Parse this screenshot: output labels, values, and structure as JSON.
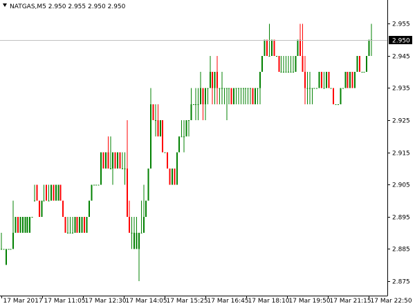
{
  "window": {
    "title": "NATGAS,M5  2.950 2.955 2.950 2.950"
  },
  "colors": {
    "bull": "#008000",
    "bear": "#ff0000",
    "axis": "#000000",
    "bid_line": "#c0c0c0",
    "price_box_bg": "#000000",
    "price_box_text": "#ffffff"
  },
  "chart_data": {
    "type": "candlestick",
    "symbol": "NATGAS",
    "timeframe": "M5",
    "current_price": 2.95,
    "ylim": [
      2.8705,
      2.9585
    ],
    "y_ticks": [
      "2.955",
      "2.945",
      "2.935",
      "2.925",
      "2.915",
      "2.905",
      "2.895",
      "2.885",
      "2.875"
    ],
    "x_tick_labels": [
      "17 Mar 2017",
      "17 Mar 11:05",
      "17 Mar 12:30",
      "17 Mar 14:05",
      "17 Mar 15:25",
      "17 Mar 16:45",
      "17 Mar 18:10",
      "17 Mar 19:50",
      "17 Mar 21:15",
      "17 Mar 22:50"
    ],
    "ohlc": [
      [
        2.885,
        2.89,
        2.885,
        2.885
      ],
      [
        2.885,
        2.885,
        2.885,
        2.885
      ],
      [
        2.88,
        2.885,
        2.88,
        2.885
      ],
      [
        2.885,
        2.885,
        2.885,
        2.885
      ],
      [
        2.885,
        2.885,
        2.885,
        2.885
      ],
      [
        2.885,
        2.9,
        2.885,
        2.89
      ],
      [
        2.89,
        2.895,
        2.89,
        2.895
      ],
      [
        2.895,
        2.895,
        2.89,
        2.89
      ],
      [
        2.89,
        2.895,
        2.89,
        2.895
      ],
      [
        2.89,
        2.895,
        2.89,
        2.895
      ],
      [
        2.89,
        2.895,
        2.89,
        2.895
      ],
      [
        2.89,
        2.895,
        2.89,
        2.895
      ],
      [
        2.89,
        2.895,
        2.89,
        2.895
      ],
      [
        2.895,
        2.895,
        2.895,
        2.895
      ],
      [
        2.9,
        2.905,
        2.9,
        2.9
      ],
      [
        2.905,
        2.905,
        2.9,
        2.9
      ],
      [
        2.9,
        2.9,
        2.895,
        2.895
      ],
      [
        2.895,
        2.9,
        2.895,
        2.9
      ],
      [
        2.9,
        2.905,
        2.9,
        2.9
      ],
      [
        2.905,
        2.905,
        2.9,
        2.9
      ],
      [
        2.9,
        2.905,
        2.9,
        2.9
      ],
      [
        2.9,
        2.905,
        2.9,
        2.905
      ],
      [
        2.905,
        2.905,
        2.9,
        2.9
      ],
      [
        2.9,
        2.905,
        2.9,
        2.905
      ],
      [
        2.9,
        2.905,
        2.9,
        2.905
      ],
      [
        2.905,
        2.905,
        2.9,
        2.9
      ],
      [
        2.9,
        2.9,
        2.895,
        2.895
      ],
      [
        2.895,
        2.895,
        2.89,
        2.89
      ],
      [
        2.89,
        2.895,
        2.89,
        2.89
      ],
      [
        2.89,
        2.895,
        2.89,
        2.89
      ],
      [
        2.89,
        2.895,
        2.89,
        2.89
      ],
      [
        2.89,
        2.895,
        2.89,
        2.895
      ],
      [
        2.895,
        2.895,
        2.89,
        2.89
      ],
      [
        2.89,
        2.895,
        2.89,
        2.895
      ],
      [
        2.89,
        2.895,
        2.89,
        2.895
      ],
      [
        2.895,
        2.895,
        2.89,
        2.89
      ],
      [
        2.89,
        2.895,
        2.89,
        2.895
      ],
      [
        2.895,
        2.9,
        2.895,
        2.9
      ],
      [
        2.9,
        2.905,
        2.9,
        2.905
      ],
      [
        2.905,
        2.905,
        2.905,
        2.905
      ],
      [
        2.905,
        2.905,
        2.905,
        2.905
      ],
      [
        2.905,
        2.905,
        2.905,
        2.905
      ],
      [
        2.905,
        2.915,
        2.905,
        2.915
      ],
      [
        2.915,
        2.915,
        2.91,
        2.91
      ],
      [
        2.91,
        2.915,
        2.91,
        2.915
      ],
      [
        2.915,
        2.92,
        2.91,
        2.91
      ],
      [
        2.91,
        2.92,
        2.91,
        2.91
      ],
      [
        2.91,
        2.915,
        2.905,
        2.915
      ],
      [
        2.915,
        2.915,
        2.91,
        2.91
      ],
      [
        2.91,
        2.915,
        2.91,
        2.915
      ],
      [
        2.915,
        2.915,
        2.91,
        2.91
      ],
      [
        2.91,
        2.915,
        2.91,
        2.91
      ],
      [
        2.91,
        2.915,
        2.905,
        2.91
      ],
      [
        2.91,
        2.925,
        2.895,
        2.895
      ],
      [
        2.895,
        2.9,
        2.89,
        2.89
      ],
      [
        2.89,
        2.895,
        2.885,
        2.89
      ],
      [
        2.885,
        2.895,
        2.885,
        2.89
      ],
      [
        2.885,
        2.895,
        2.885,
        2.89
      ],
      [
        2.885,
        2.89,
        2.875,
        2.89
      ],
      [
        2.89,
        2.9,
        2.89,
        2.89
      ],
      [
        2.89,
        2.905,
        2.89,
        2.895
      ],
      [
        2.895,
        2.9,
        2.895,
        2.9
      ],
      [
        2.9,
        2.91,
        2.9,
        2.91
      ],
      [
        2.91,
        2.935,
        2.91,
        2.93
      ],
      [
        2.93,
        2.93,
        2.925,
        2.925
      ],
      [
        2.925,
        2.93,
        2.92,
        2.925
      ],
      [
        2.925,
        2.93,
        2.92,
        2.92
      ],
      [
        2.92,
        2.925,
        2.92,
        2.925
      ],
      [
        2.925,
        2.925,
        2.915,
        2.915
      ],
      [
        2.915,
        2.915,
        2.915,
        2.915
      ],
      [
        2.915,
        2.915,
        2.91,
        2.91
      ],
      [
        2.91,
        2.91,
        2.905,
        2.905
      ],
      [
        2.905,
        2.91,
        2.905,
        2.91
      ],
      [
        2.91,
        2.91,
        2.905,
        2.905
      ],
      [
        2.905,
        2.915,
        2.905,
        2.915
      ],
      [
        2.915,
        2.92,
        2.915,
        2.92
      ],
      [
        2.92,
        2.925,
        2.92,
        2.92
      ],
      [
        2.92,
        2.925,
        2.915,
        2.92
      ],
      [
        2.92,
        2.925,
        2.92,
        2.925
      ],
      [
        2.925,
        2.925,
        2.92,
        2.925
      ],
      [
        2.925,
        2.935,
        2.925,
        2.93
      ],
      [
        2.93,
        2.93,
        2.93,
        2.93
      ],
      [
        2.93,
        2.935,
        2.925,
        2.93
      ],
      [
        2.93,
        2.935,
        2.925,
        2.93
      ],
      [
        2.93,
        2.94,
        2.93,
        2.935
      ],
      [
        2.935,
        2.935,
        2.925,
        2.93
      ],
      [
        2.93,
        2.935,
        2.925,
        2.935
      ],
      [
        2.935,
        2.935,
        2.93,
        2.935
      ],
      [
        2.935,
        2.945,
        2.935,
        2.94
      ],
      [
        2.94,
        2.94,
        2.93,
        2.935
      ],
      [
        2.935,
        2.94,
        2.93,
        2.94
      ],
      [
        2.94,
        2.945,
        2.93,
        2.935
      ],
      [
        2.935,
        2.935,
        2.93,
        2.935
      ],
      [
        2.935,
        2.94,
        2.93,
        2.935
      ],
      [
        2.935,
        2.935,
        2.93,
        2.935
      ],
      [
        2.935,
        2.935,
        2.925,
        2.935
      ],
      [
        2.935,
        2.935,
        2.93,
        2.935
      ],
      [
        2.935,
        2.935,
        2.93,
        2.93
      ],
      [
        2.93,
        2.935,
        2.93,
        2.935
      ],
      [
        2.935,
        2.935,
        2.93,
        2.935
      ],
      [
        2.935,
        2.935,
        2.93,
        2.935
      ],
      [
        2.935,
        2.935,
        2.93,
        2.935
      ],
      [
        2.935,
        2.935,
        2.93,
        2.935
      ],
      [
        2.935,
        2.935,
        2.93,
        2.935
      ],
      [
        2.935,
        2.935,
        2.93,
        2.935
      ],
      [
        2.935,
        2.935,
        2.93,
        2.935
      ],
      [
        2.935,
        2.935,
        2.93,
        2.93
      ],
      [
        2.93,
        2.935,
        2.93,
        2.935
      ],
      [
        2.935,
        2.935,
        2.93,
        2.935
      ],
      [
        2.935,
        2.94,
        2.93,
        2.94
      ],
      [
        2.94,
        2.945,
        2.94,
        2.945
      ],
      [
        2.945,
        2.95,
        2.945,
        2.95
      ],
      [
        2.95,
        2.95,
        2.945,
        2.945
      ],
      [
        2.945,
        2.955,
        2.945,
        2.945
      ],
      [
        2.945,
        2.95,
        2.945,
        2.95
      ],
      [
        2.95,
        2.95,
        2.945,
        2.945
      ],
      [
        2.945,
        2.945,
        2.945,
        2.945
      ],
      [
        2.945,
        2.945,
        2.94,
        2.94
      ],
      [
        2.94,
        2.945,
        2.94,
        2.94
      ],
      [
        2.94,
        2.945,
        2.94,
        2.94
      ],
      [
        2.94,
        2.945,
        2.94,
        2.94
      ],
      [
        2.94,
        2.945,
        2.94,
        2.94
      ],
      [
        2.94,
        2.945,
        2.94,
        2.94
      ],
      [
        2.94,
        2.945,
        2.94,
        2.94
      ],
      [
        2.94,
        2.945,
        2.94,
        2.945
      ],
      [
        2.945,
        2.95,
        2.945,
        2.95
      ],
      [
        2.95,
        2.955,
        2.945,
        2.945
      ],
      [
        2.945,
        2.955,
        2.94,
        2.94
      ],
      [
        2.94,
        2.945,
        2.93,
        2.935
      ],
      [
        2.935,
        2.94,
        2.93,
        2.935
      ],
      [
        2.935,
        2.94,
        2.93,
        2.935
      ],
      [
        2.935,
        2.935,
        2.93,
        2.935
      ],
      [
        2.935,
        2.935,
        2.935,
        2.935
      ],
      [
        2.935,
        2.935,
        2.935,
        2.935
      ],
      [
        2.935,
        2.94,
        2.935,
        2.94
      ],
      [
        2.94,
        2.94,
        2.935,
        2.935
      ],
      [
        2.935,
        2.94,
        2.935,
        2.935
      ],
      [
        2.935,
        2.94,
        2.935,
        2.94
      ],
      [
        2.94,
        2.94,
        2.935,
        2.935
      ],
      [
        2.935,
        2.935,
        2.935,
        2.935
      ],
      [
        2.935,
        2.935,
        2.93,
        2.93
      ],
      [
        2.93,
        2.93,
        2.93,
        2.93
      ],
      [
        2.93,
        2.93,
        2.93,
        2.93
      ],
      [
        2.93,
        2.935,
        2.93,
        2.935
      ],
      [
        2.935,
        2.935,
        2.935,
        2.935
      ],
      [
        2.935,
        2.94,
        2.935,
        2.94
      ],
      [
        2.94,
        2.94,
        2.935,
        2.935
      ],
      [
        2.935,
        2.94,
        2.935,
        2.94
      ],
      [
        2.94,
        2.94,
        2.935,
        2.935
      ],
      [
        2.935,
        2.94,
        2.935,
        2.94
      ],
      [
        2.94,
        2.945,
        2.94,
        2.945
      ],
      [
        2.945,
        2.945,
        2.94,
        2.94
      ],
      [
        2.94,
        2.94,
        2.94,
        2.94
      ],
      [
        2.94,
        2.94,
        2.94,
        2.94
      ],
      [
        2.94,
        2.945,
        2.94,
        2.945
      ],
      [
        2.945,
        2.95,
        2.945,
        2.95
      ],
      [
        2.95,
        2.955,
        2.945,
        2.95
      ]
    ]
  }
}
